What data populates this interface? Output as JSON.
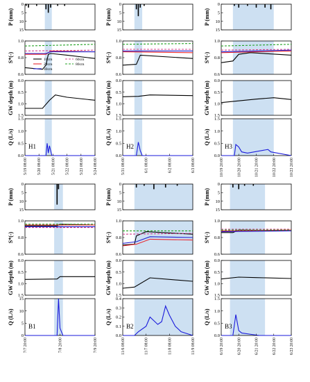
{
  "figure": {
    "panels_labels": [
      "H1",
      "H2",
      "H3",
      "B1",
      "B2",
      "B3"
    ]
  },
  "chart_data": [
    {
      "id": "H1",
      "type": "line",
      "x_ticks": [
        "5/19 08:00",
        "5/20 08:00",
        "5/21 08:00",
        "5/22 08:00",
        "5/23 08:00",
        "5/24 08:00"
      ],
      "event_shade": [
        "5/20 18:00",
        "5/21 06:00"
      ],
      "precip_mm": {
        "x": [
          "5/19 10:00",
          "5/19 14:00",
          "5/20 04:00",
          "5/20 20:00",
          "5/21 00:00",
          "5/21 04:00",
          "5/21 16:00",
          "5/22 04:00"
        ],
        "values": [
          1,
          2,
          1,
          3,
          5,
          2,
          1,
          1
        ],
        "ylim": [
          0,
          15
        ]
      },
      "saturation": {
        "ylim": [
          0.6,
          1.0
        ],
        "series": [
          {
            "name": "10cm",
            "color": "#000000",
            "x": [
              "5/19 08:00",
              "5/20 14:00",
              "5/20 20:00",
              "5/21 00:00",
              "5/21 04:00",
              "5/22 08:00",
              "5/24 08:00"
            ],
            "values": [
              0.68,
              0.66,
              0.71,
              0.84,
              0.85,
              0.83,
              0.79
            ]
          },
          {
            "name": "20cm",
            "color": "#e8272e",
            "x": [
              "5/19 08:00",
              "5/20 20:00",
              "5/21 04:00",
              "5/24 08:00"
            ],
            "values": [
              0.84,
              0.84,
              0.88,
              0.87
            ]
          },
          {
            "name": "40cm",
            "color": "#2020d0",
            "x": [
              "5/19 08:00",
              "5/20 20:00",
              "5/21 04:00",
              "5/24 08:00"
            ],
            "values": [
              0.85,
              0.85,
              0.87,
              0.87
            ]
          },
          {
            "name": "60cm",
            "color": "#d04090",
            "dashed": true,
            "x": [
              "5/19 08:00",
              "5/24 08:00"
            ],
            "values": [
              0.88,
              0.89
            ]
          },
          {
            "name": "80cm",
            "color": "#20a020",
            "dashed": true,
            "x": [
              "5/19 08:00",
              "5/24 08:00"
            ],
            "values": [
              0.94,
              0.96
            ]
          }
        ]
      },
      "gw_depth_m": {
        "ylim": [
          0,
          1.5
        ],
        "x": [
          "5/19 08:00",
          "5/20 14:00",
          "5/21 02:00",
          "5/21 12:00",
          "5/22 08:00",
          "5/24 08:00"
        ],
        "values": [
          1.2,
          1.2,
          0.85,
          0.62,
          0.72,
          0.85
        ]
      },
      "q_ls": {
        "ylim": [
          0,
          1.5
        ],
        "x": [
          "5/19 08:00",
          "5/20 20:00",
          "5/20 22:00",
          "5/21 00:00",
          "5/21 02:00",
          "5/21 04:00",
          "5/21 06:00",
          "5/24 08:00"
        ],
        "values": [
          0,
          0,
          0.5,
          0.1,
          0.4,
          0.2,
          0,
          0
        ]
      }
    },
    {
      "id": "H2",
      "type": "line",
      "x_ticks": [
        "5/31 08:00",
        "6/1 08:00",
        "6/2 08:00",
        "6/3 08:00"
      ],
      "event_shade": [
        "5/31 20:00",
        "6/1 04:00"
      ],
      "precip_mm": {
        "x": [
          "5/31 22:00",
          "6/1 00:00",
          "6/1 02:00",
          "6/1 06:00"
        ],
        "values": [
          3,
          7,
          2,
          1
        ],
        "ylim": [
          0,
          15
        ]
      },
      "saturation": {
        "ylim": [
          0.6,
          1.0
        ],
        "series": [
          {
            "name": "10cm",
            "color": "#000000",
            "x": [
              "5/31 08:00",
              "5/31 22:00",
              "6/1 02:00",
              "6/3 08:00"
            ],
            "values": [
              0.71,
              0.72,
              0.83,
              0.79
            ]
          },
          {
            "name": "20cm",
            "color": "#e8272e",
            "x": [
              "5/31 08:00",
              "6/3 08:00"
            ],
            "values": [
              0.87,
              0.86
            ]
          },
          {
            "name": "40cm",
            "color": "#2020d0",
            "x": [
              "5/31 08:00",
              "6/3 08:00"
            ],
            "values": [
              0.88,
              0.88
            ]
          },
          {
            "name": "60cm",
            "color": "#d04090",
            "dashed": true,
            "x": [
              "5/31 08:00",
              "6/3 08:00"
            ],
            "values": [
              0.9,
              0.9
            ]
          },
          {
            "name": "80cm",
            "color": "#20a020",
            "dashed": true,
            "x": [
              "5/31 08:00",
              "6/3 08:00"
            ],
            "values": [
              0.96,
              0.97
            ]
          }
        ]
      },
      "gw_depth_m": {
        "ylim": [
          0,
          1.5
        ],
        "x": [
          "5/31 08:00",
          "6/1 00:00",
          "6/1 12:00",
          "6/3 08:00"
        ],
        "values": [
          0.7,
          0.68,
          0.62,
          0.65
        ]
      },
      "q_ls": {
        "ylim": [
          0,
          1.5
        ],
        "x": [
          "5/31 08:00",
          "5/31 22:00",
          "6/1 00:00",
          "6/1 02:00",
          "6/1 04:00",
          "6/3 08:00"
        ],
        "values": [
          0,
          0,
          0.55,
          0.2,
          0,
          0
        ]
      }
    },
    {
      "id": "H3",
      "type": "line",
      "x_ticks": [
        "10/19 20:00",
        "10/20 20:00",
        "10/21 20:00",
        "10/22 20:00",
        "10/23 20:00"
      ],
      "event_shade": [
        "10/20 12:00",
        "10/22 20:00"
      ],
      "precip_mm": {
        "x": [
          "10/20 14:00",
          "10/20 20:00",
          "10/21 08:00",
          "10/21 20:00",
          "10/22 08:00",
          "10/22 16:00"
        ],
        "values": [
          1,
          2,
          1,
          2,
          2,
          3
        ],
        "ylim": [
          0,
          15
        ]
      },
      "saturation": {
        "ylim": [
          0.6,
          1.0
        ],
        "series": [
          {
            "name": "10cm",
            "color": "#000000",
            "x": [
              "10/19 20:00",
              "10/20 12:00",
              "10/20 20:00",
              "10/21 12:00",
              "10/23 20:00"
            ],
            "values": [
              0.74,
              0.76,
              0.84,
              0.86,
              0.83
            ]
          },
          {
            "name": "20cm",
            "color": "#e8272e",
            "x": [
              "10/19 20:00",
              "10/23 20:00"
            ],
            "values": [
              0.86,
              0.88
            ]
          },
          {
            "name": "40cm",
            "color": "#2020d0",
            "x": [
              "10/19 20:00",
              "10/23 20:00"
            ],
            "values": [
              0.87,
              0.89
            ]
          },
          {
            "name": "60cm",
            "color": "#d04090",
            "dashed": true,
            "x": [
              "10/19 20:00",
              "10/23 20:00"
            ],
            "values": [
              0.89,
              0.9
            ]
          },
          {
            "name": "80cm",
            "color": "#20a020",
            "dashed": true,
            "x": [
              "10/19 20:00",
              "10/23 20:00"
            ],
            "values": [
              0.94,
              0.96
            ]
          }
        ]
      },
      "gw_depth_m": {
        "ylim": [
          0,
          1.5
        ],
        "x": [
          "10/19 20:00",
          "10/21 20:00",
          "10/22 20:00",
          "10/23 20:00"
        ],
        "values": [
          0.95,
          0.8,
          0.74,
          0.82
        ]
      },
      "q_ls": {
        "ylim": [
          0,
          1.5
        ],
        "x": [
          "10/19 20:00",
          "10/20 14:00",
          "10/20 16:00",
          "10/20 20:00",
          "10/21 00:00",
          "10/21 08:00",
          "10/22 12:00",
          "10/22 16:00",
          "10/23 20:00"
        ],
        "values": [
          0,
          0,
          0.45,
          0.35,
          0.15,
          0.1,
          0.25,
          0.15,
          0
        ]
      }
    },
    {
      "id": "B1",
      "type": "line",
      "x_ticks": [
        "7/7 20:00",
        "7/8 20:00",
        "7/9 20:00"
      ],
      "event_shade": [
        "7/8 16:00",
        "7/8 22:00"
      ],
      "precip_mm": {
        "x": [
          "7/8 18:00",
          "7/8 19:00"
        ],
        "values": [
          12,
          3
        ],
        "ylim": [
          0,
          15
        ]
      },
      "saturation": {
        "ylim": [
          0.6,
          1.0
        ],
        "series": [
          {
            "name": "10cm",
            "color": "#000000",
            "x": [
              "7/7 20:00",
              "7/8 18:00",
              "7/8 20:00",
              "7/9 20:00"
            ],
            "values": [
              0.94,
              0.94,
              0.96,
              0.95
            ]
          },
          {
            "name": "20cm",
            "color": "#e8272e",
            "x": [
              "7/7 20:00",
              "7/9 20:00"
            ],
            "values": [
              0.95,
              0.95
            ]
          },
          {
            "name": "40cm",
            "color": "#2020d0",
            "x": [
              "7/7 20:00",
              "7/9 20:00"
            ],
            "values": [
              0.93,
              0.93
            ]
          },
          {
            "name": "60cm",
            "color": "#d04090",
            "dashed": true,
            "x": [
              "7/7 20:00",
              "7/9 20:00"
            ],
            "values": [
              0.92,
              0.92
            ]
          },
          {
            "name": "80cm",
            "color": "#20a020",
            "dashed": true,
            "x": [
              "7/7 20:00",
              "7/9 20:00"
            ],
            "values": [
              0.96,
              0.96
            ]
          }
        ]
      },
      "gw_depth_m": {
        "ylim": [
          0,
          1.5
        ],
        "x": [
          "7/7 20:00",
          "7/8 18:00",
          "7/8 20:00",
          "7/9 20:00"
        ],
        "values": [
          0.82,
          0.8,
          0.7,
          0.7
        ]
      },
      "q_ls": {
        "ylim": [
          0,
          15
        ],
        "x": [
          "7/7 20:00",
          "7/8 18:00",
          "7/8 19:00",
          "7/8 20:00",
          "7/8 22:00",
          "7/9 20:00"
        ],
        "values": [
          0,
          0,
          15,
          3,
          0,
          0
        ]
      }
    },
    {
      "id": "B2",
      "type": "line",
      "x_ticks": [
        "11/6 08:00",
        "11/7 08:00",
        "11/8 08:00",
        "11/9 08:00"
      ],
      "event_shade": [
        "11/6 20:00",
        "11/9 08:00"
      ],
      "precip_mm": {
        "x": [
          "11/6 22:00",
          "11/7 06:00",
          "11/7 16:00",
          "11/8 04:00",
          "11/8 16:00"
        ],
        "values": [
          2,
          1,
          3,
          2,
          1
        ],
        "ylim": [
          0,
          15
        ]
      },
      "saturation": {
        "ylim": [
          0.6,
          1.0
        ],
        "series": [
          {
            "name": "10cm",
            "color": "#000000",
            "x": [
              "11/6 08:00",
              "11/6 20:00",
              "11/6 22:00",
              "11/7 08:00",
              "11/9 08:00"
            ],
            "values": [
              0.71,
              0.72,
              0.82,
              0.87,
              0.84
            ]
          },
          {
            "name": "20cm",
            "color": "#e8272e",
            "x": [
              "11/6 08:00",
              "11/6 22:00",
              "11/7 12:00",
              "11/9 08:00"
            ],
            "values": [
              0.7,
              0.72,
              0.78,
              0.77
            ]
          },
          {
            "name": "40cm",
            "color": "#2020d0",
            "x": [
              "11/6 08:00",
              "11/6 22:00",
              "11/7 12:00",
              "11/9 08:00"
            ],
            "values": [
              0.73,
              0.75,
              0.81,
              0.8
            ]
          },
          {
            "name": "60cm",
            "color": "#d04090",
            "dashed": true,
            "x": [
              "11/6 08:00",
              "11/9 08:00"
            ],
            "values": [
              0.84,
              0.85
            ]
          },
          {
            "name": "80cm",
            "color": "#20a020",
            "dashed": true,
            "x": [
              "11/6 08:00",
              "11/9 08:00"
            ],
            "values": [
              0.88,
              0.88
            ]
          }
        ]
      },
      "gw_depth_m": {
        "ylim": [
          0,
          1.5
        ],
        "x": [
          "11/6 08:00",
          "11/6 20:00",
          "11/7 12:00",
          "11/9 08:00"
        ],
        "values": [
          1.2,
          1.15,
          0.75,
          0.9
        ]
      },
      "q_ls": {
        "ylim": [
          0,
          0.4
        ],
        "x": [
          "11/6 08:00",
          "11/6 20:00",
          "11/7 00:00",
          "11/7 08:00",
          "11/7 12:00",
          "11/7 20:00",
          "11/8 00:00",
          "11/8 04:00",
          "11/8 08:00",
          "11/8 14:00",
          "11/8 20:00",
          "11/9 08:00"
        ],
        "values": [
          0,
          0,
          0.04,
          0.1,
          0.2,
          0.12,
          0.15,
          0.32,
          0.22,
          0.1,
          0.04,
          0
        ]
      }
    },
    {
      "id": "B3",
      "type": "line",
      "x_ticks": [
        "6/19 20:00",
        "6/20 20:00",
        "6/21 20:00",
        "6/22 20:00",
        "6/23 20:00"
      ],
      "event_shade": [
        "6/20 08:00",
        "6/22 08:00"
      ],
      "precip_mm": {
        "x": [
          "6/20 12:00",
          "6/20 20:00",
          "6/21 04:00",
          "6/21 16:00"
        ],
        "values": [
          2,
          3,
          1,
          1
        ],
        "ylim": [
          0,
          15
        ]
      },
      "saturation": {
        "ylim": [
          0.6,
          1.0
        ],
        "series": [
          {
            "name": "10cm",
            "color": "#000000",
            "x": [
              "6/19 20:00",
              "6/20 12:00",
              "6/20 20:00",
              "6/23 20:00"
            ],
            "values": [
              0.86,
              0.86,
              0.89,
              0.88
            ]
          },
          {
            "name": "20cm",
            "color": "#e8272e",
            "x": [
              "6/19 20:00",
              "6/23 20:00"
            ],
            "values": [
              0.88,
              0.89
            ]
          },
          {
            "name": "40cm",
            "color": "#2020d0",
            "x": [
              "6/19 20:00",
              "6/23 20:00"
            ],
            "values": [
              0.87,
              0.88
            ]
          },
          {
            "name": "60cm",
            "color": "#d04090",
            "dashed": true,
            "x": [
              "6/19 20:00",
              "6/23 20:00"
            ],
            "values": [
              0.9,
              0.9
            ]
          },
          {
            "name": "80cm",
            "color": "#20a020",
            "dashed": true,
            "x": [
              "6/19 20:00",
              "6/23 20:00"
            ],
            "values": [
              0.89,
              0.89
            ]
          }
        ]
      },
      "gw_depth_m": {
        "ylim": [
          0,
          1.5
        ],
        "x": [
          "6/19 20:00",
          "6/20 20:00",
          "6/21 20:00",
          "6/23 20:00"
        ],
        "values": [
          0.8,
          0.72,
          0.74,
          0.78
        ]
      },
      "q_ls": {
        "ylim": [
          0,
          1.5
        ],
        "x": [
          "6/19 20:00",
          "6/20 12:00",
          "6/20 16:00",
          "6/20 20:00",
          "6/21 00:00",
          "6/21 12:00",
          "6/22 00:00",
          "6/23 20:00"
        ],
        "values": [
          0,
          0,
          0.85,
          0.2,
          0.1,
          0.05,
          0,
          0
        ]
      }
    }
  ],
  "axis_labels": {
    "p": "P (mm)",
    "s": "S*(-)",
    "gw": "GW depth (m)",
    "q": "Q (L/s)"
  },
  "tick_labels": {
    "p": [
      "0",
      "5",
      "10",
      "15"
    ],
    "s": [
      "0.6",
      "0.8",
      "1.0"
    ],
    "gw": [
      "0.0",
      "0.5",
      "1.0",
      "1.5"
    ],
    "q": [
      "0.0",
      "0.5",
      "1.0",
      "1.5"
    ],
    "q_b1": [
      "0",
      "5",
      "10",
      "15"
    ],
    "q_b2": [
      "0.0",
      "0.1",
      "0.2",
      "0.3",
      "0.4"
    ]
  },
  "legend": {
    "entries": [
      {
        "label": "10cm",
        "color": "#000000",
        "dashed": false
      },
      {
        "label": "20cm",
        "color": "#e8272e",
        "dashed": false
      },
      {
        "label": "40cm",
        "color": "#2020d0",
        "dashed": false
      },
      {
        "label": "60cm",
        "color": "#d04090",
        "dashed": true
      },
      {
        "label": "80cm",
        "color": "#20a020",
        "dashed": true
      }
    ]
  },
  "colors": {
    "shade": "#cde0f2",
    "q_line": "#1a1adb",
    "gw_line": "#000000"
  }
}
